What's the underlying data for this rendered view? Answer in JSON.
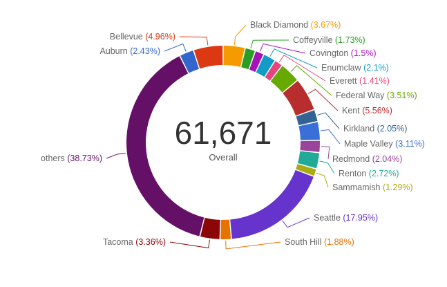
{
  "chart_data": {
    "type": "pie",
    "variant": "donut",
    "total_label": "61,671",
    "total_caption": "Overall",
    "slices": [
      {
        "name": "Black Diamond",
        "percent": 3.67,
        "label": "Black Diamond",
        "pct_text": "(3.67%)",
        "color": "#f59b00"
      },
      {
        "name": "Coffeyville",
        "percent": 1.73,
        "label": "Coffeyville",
        "pct_text": "(1.73%)",
        "color": "#2a9d23"
      },
      {
        "name": "Covington",
        "percent": 1.5,
        "label": "Covington",
        "pct_text": "(1.5%)",
        "color": "#a313b8"
      },
      {
        "name": "Enumclaw",
        "percent": 2.1,
        "label": "Enumclaw",
        "pct_text": "(2.1%)",
        "color": "#139bc8"
      },
      {
        "name": "Everett",
        "percent": 1.41,
        "label": "Everett",
        "pct_text": "(1.41%)",
        "color": "#e8457c"
      },
      {
        "name": "Federal Way",
        "percent": 3.51,
        "label": "Federal Way",
        "pct_text": "(3.51%)",
        "color": "#66aa00"
      },
      {
        "name": "Kent",
        "percent": 5.56,
        "label": "Kent",
        "pct_text": "(5.56%)",
        "color": "#b82e2e"
      },
      {
        "name": "Kirkland",
        "percent": 2.05,
        "label": "Kirkland",
        "pct_text": "(2.05%)",
        "color": "#316395"
      },
      {
        "name": "Maple Valley",
        "percent": 3.11,
        "label": "Maple Valley",
        "pct_text": "(3.11%)",
        "color": "#3b6fd8"
      },
      {
        "name": "Redmond",
        "percent": 2.04,
        "label": "Redmond",
        "pct_text": "(2.04%)",
        "color": "#994499"
      },
      {
        "name": "Renton",
        "percent": 2.72,
        "label": "Renton",
        "pct_text": "(2.72%)",
        "color": "#22aa99"
      },
      {
        "name": "Sammamish",
        "percent": 1.29,
        "label": "Sammamish",
        "pct_text": "(1.29%)",
        "color": "#aaaa11"
      },
      {
        "name": "Seattle",
        "percent": 17.95,
        "label": "Seattle",
        "pct_text": "(17.95%)",
        "color": "#6633cc"
      },
      {
        "name": "South Hill",
        "percent": 1.88,
        "label": "South Hill",
        "pct_text": "(1.88%)",
        "color": "#e67300"
      },
      {
        "name": "Tacoma",
        "percent": 3.36,
        "label": "Tacoma",
        "pct_text": "(3.36%)",
        "color": "#8b0707"
      },
      {
        "name": "others",
        "percent": 38.73,
        "label": "others",
        "pct_text": "(38.73%)",
        "color": "#651067"
      },
      {
        "name": "Auburn",
        "percent": 2.43,
        "label": "Auburn",
        "pct_text": "(2.43%)",
        "color": "#3366cc"
      },
      {
        "name": "Bellevue",
        "percent": 4.96,
        "label": "Bellevue",
        "pct_text": "(4.96%)",
        "color": "#dc3912"
      }
    ]
  }
}
